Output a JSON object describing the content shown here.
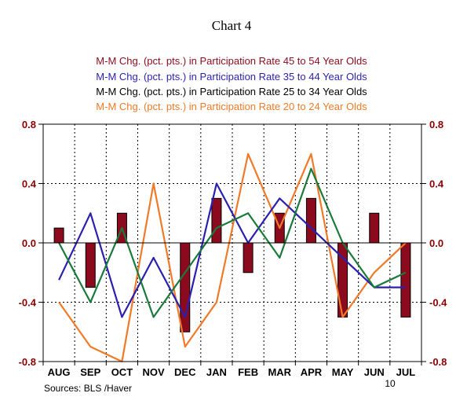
{
  "chart_data": {
    "type": "bar",
    "title": "Chart 4",
    "categories": [
      "AUG",
      "SEP",
      "OCT",
      "NOV",
      "DEC",
      "JAN",
      "FEB",
      "MAR",
      "APR",
      "MAY",
      "JUN",
      "JUL"
    ],
    "year_marker": "10",
    "ylim": [
      -0.8,
      0.8
    ],
    "yticks": [
      "0.8",
      "0.4",
      "0.0",
      "-0.4",
      "-0.8"
    ],
    "grid": true,
    "legend_position": "top",
    "source": "Sources:  BLS /Haver",
    "series": [
      {
        "name": "M-M Chg. (pct. pts.) in Participation Rate 45 to 54 Year Olds",
        "kind": "bar",
        "color": "#8b0a1e",
        "values": [
          0.1,
          -0.3,
          0.2,
          0.0,
          -0.6,
          0.3,
          -0.2,
          0.2,
          0.3,
          -0.5,
          0.2,
          -0.5
        ]
      },
      {
        "name": "M-M Chg. (pct. pts.) in Participation Rate 35 to 44 Year Olds",
        "kind": "line",
        "color": "#2b1fb0",
        "values": [
          -0.25,
          0.2,
          -0.5,
          -0.1,
          -0.5,
          0.4,
          0.0,
          0.3,
          0.1,
          -0.1,
          -0.3,
          -0.3
        ]
      },
      {
        "name": "M-M Chg. (pct. pts.) in Participation Rate 25 to 34 Year Olds",
        "kind": "line",
        "color": "#1a7a3a",
        "legend_color": "#000000",
        "values": [
          0.0,
          -0.4,
          0.1,
          -0.5,
          -0.2,
          0.1,
          0.2,
          -0.1,
          0.5,
          0.0,
          -0.3,
          -0.2
        ]
      },
      {
        "name": "M-M Chg. (pct. pts.) in Participation Rate 20 to 24 Year Olds",
        "kind": "line",
        "color": "#f07a28",
        "values": [
          -0.4,
          -0.7,
          -0.8,
          0.4,
          -0.7,
          -0.4,
          0.6,
          0.1,
          0.6,
          -0.5,
          -0.2,
          0.0
        ]
      }
    ]
  }
}
